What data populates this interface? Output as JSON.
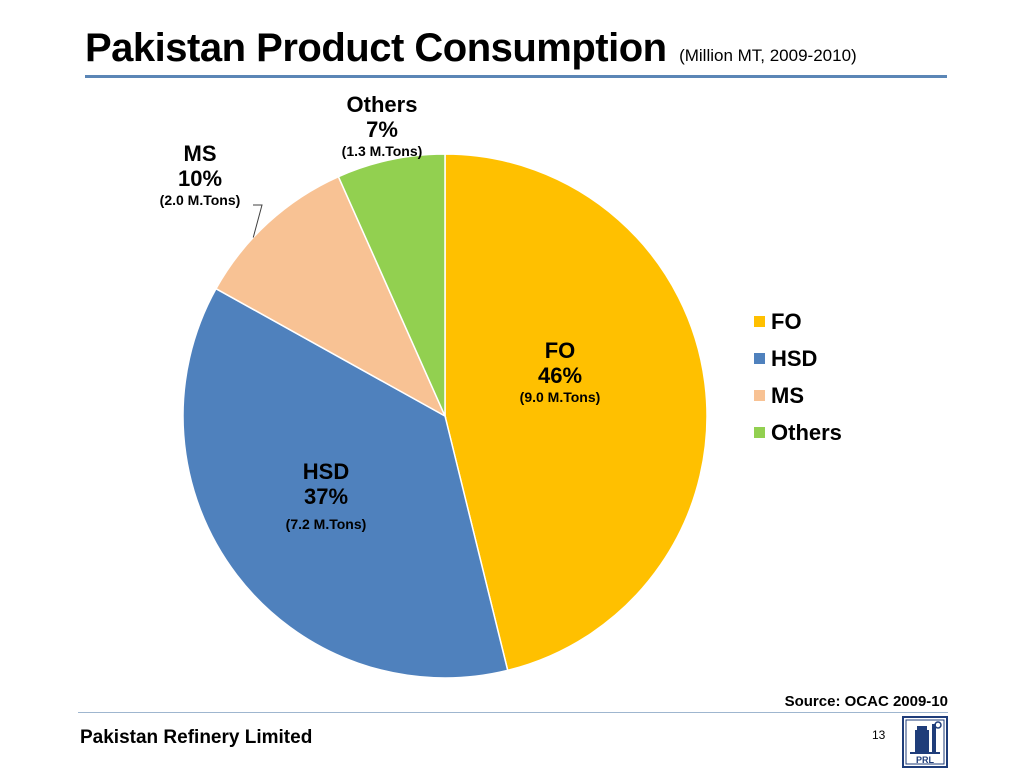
{
  "slide": {
    "title": "Pakistan Product Consumption",
    "subtitle": "(Million MT, 2009-2010)",
    "source": "Source: OCAC 2009-10",
    "company": "Pakistan Refinery Limited",
    "page_number": "13",
    "logo_text": "PRL",
    "accent_color": "#5b86b6"
  },
  "chart_data": {
    "type": "pie",
    "title": "Pakistan Product Consumption",
    "subtitle": "(Million MT, 2009-2010)",
    "legend_position": "right",
    "start_angle": "12 o'clock, clockwise",
    "slices": [
      {
        "name": "FO",
        "value": 9.0,
        "percent": 46,
        "pct_label": "46%",
        "tons_label": "(9.0 M.Tons)",
        "color": "#ffc000"
      },
      {
        "name": "HSD",
        "value": 7.2,
        "percent": 37,
        "pct_label": "37%",
        "tons_label": "(7.2 M.Tons)",
        "color": "#4f81bd"
      },
      {
        "name": "MS",
        "value": 2.0,
        "percent": 10,
        "pct_label": "10%",
        "tons_label": "(2.0 M.Tons)",
        "color": "#f8c294"
      },
      {
        "name": "Others",
        "value": 1.3,
        "percent": 7,
        "pct_label": "7%",
        "tons_label": "(1.3 M.Tons)",
        "color": "#92d050"
      }
    ]
  }
}
